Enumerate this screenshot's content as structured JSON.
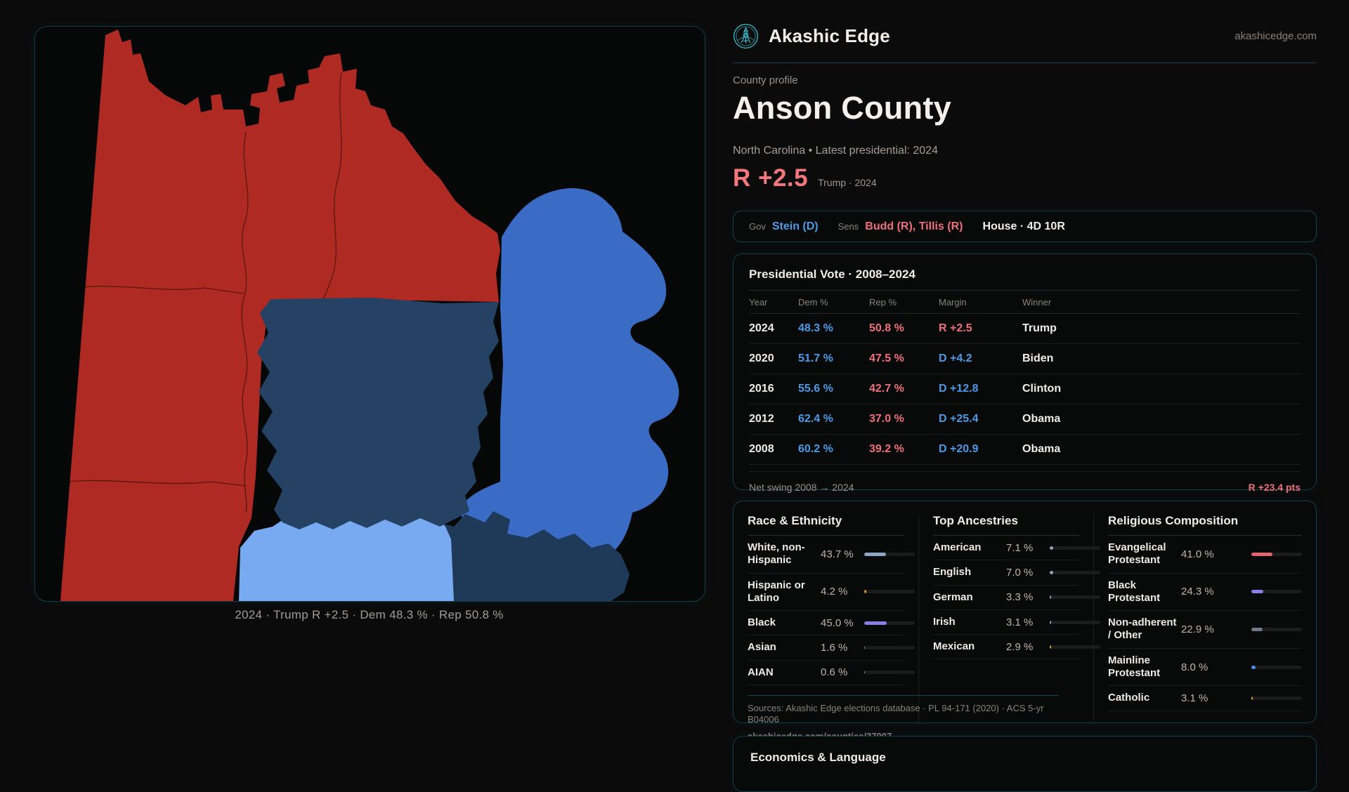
{
  "brand": {
    "name": "Akashic Edge",
    "domain": "akashicedge.com"
  },
  "header": {
    "eyebrow": "County profile",
    "title": "Anson County",
    "subtitle": "North Carolina • Latest presidential: 2024",
    "lead": "R +2.5",
    "lead_note": "Trump · 2024"
  },
  "officials": {
    "gov_label": "Gov",
    "gov": "Stein (D)",
    "sens_label": "Sens",
    "sens": "Budd (R), Tillis (R)",
    "house": "House · 4D 10R"
  },
  "vote_table": {
    "title": "Presidential Vote · 2008–2024",
    "columns": [
      "Year",
      "Dem %",
      "Rep %",
      "Margin",
      "Winner"
    ],
    "rows": [
      {
        "year": "2024",
        "dem": "48.3 %",
        "rep": "50.8 %",
        "margin": "R +2.5",
        "margin_party": "R",
        "winner": "Trump"
      },
      {
        "year": "2020",
        "dem": "51.7 %",
        "rep": "47.5 %",
        "margin": "D +4.2",
        "margin_party": "D",
        "winner": "Biden"
      },
      {
        "year": "2016",
        "dem": "55.6 %",
        "rep": "42.7 %",
        "margin": "D +12.8",
        "margin_party": "D",
        "winner": "Clinton"
      },
      {
        "year": "2012",
        "dem": "62.4 %",
        "rep": "37.0 %",
        "margin": "D +25.4",
        "margin_party": "D",
        "winner": "Obama"
      },
      {
        "year": "2008",
        "dem": "60.2 %",
        "rep": "39.2 %",
        "margin": "D +20.9",
        "margin_party": "D",
        "winner": "Obama"
      }
    ],
    "footer_label": "Net swing 2008 → 2024",
    "footer_value": "R +23.4 pts"
  },
  "demographics": {
    "groups": [
      {
        "title": "Race & Ethnicity",
        "rows": [
          {
            "label": "White, non-Hispanic",
            "value": "43.7 %",
            "pct": 43.7,
            "color": "#8fa6c4"
          },
          {
            "label": "Hispanic or Latino",
            "value": "4.2 %",
            "pct": 4.2,
            "color": "#e0951f"
          },
          {
            "label": "Black",
            "value": "45.0 %",
            "pct": 45.0,
            "color": "#8d7de6"
          },
          {
            "label": "Asian",
            "value": "1.6 %",
            "pct": 1.6,
            "color": "#35c7a4"
          },
          {
            "label": "AIAN",
            "value": "0.6 %",
            "pct": 0.6,
            "color": "#8a9aa8"
          }
        ]
      },
      {
        "title": "Top Ancestries",
        "rows": [
          {
            "label": "American",
            "value": "7.1 %",
            "pct": 7.1,
            "color": "#8fa6c4"
          },
          {
            "label": "English",
            "value": "7.0 %",
            "pct": 7.0,
            "color": "#8fa6c4"
          },
          {
            "label": "German",
            "value": "3.3 %",
            "pct": 3.3,
            "color": "#8fa6c4"
          },
          {
            "label": "Irish",
            "value": "3.1 %",
            "pct": 3.1,
            "color": "#8fa6c4"
          },
          {
            "label": "Mexican",
            "value": "2.9 %",
            "pct": 2.9,
            "color": "#e0a31f"
          }
        ]
      },
      {
        "title": "Religious Composition",
        "rows": [
          {
            "label": "Evangelical Protestant",
            "value": "41.0 %",
            "pct": 41.0,
            "color": "#e4646e"
          },
          {
            "label": "Black Protestant",
            "value": "24.3 %",
            "pct": 24.3,
            "color": "#8d7de6"
          },
          {
            "label": "Non-adherent / Other",
            "value": "22.9 %",
            "pct": 22.9,
            "color": "#6e7a8a"
          },
          {
            "label": "Mainline Protestant",
            "value": "8.0 %",
            "pct": 8.0,
            "color": "#4a90e8"
          },
          {
            "label": "Catholic",
            "value": "3.1 %",
            "pct": 3.1,
            "color": "#d9a41f"
          }
        ]
      }
    ]
  },
  "sources": {
    "line1": "Sources: Akashic Edge elections database · PL 94-171 (2020) · ACS 5-yr B04006",
    "line2": "akashicedge.com/counties/37007"
  },
  "economics": {
    "title": "Economics & Language"
  },
  "map": {
    "caption": "2024 · Trump R +2.5 · Dem 48.3 % · Rep 50.8 %",
    "regions": [
      {
        "name": "west-red-counties",
        "color": "#ae2a23"
      },
      {
        "name": "east-county",
        "color": "#3a6cc6"
      },
      {
        "name": "southeast-county",
        "color": "#1e3a58"
      },
      {
        "name": "south-county",
        "color": "#77aaf0"
      },
      {
        "name": "anson-county",
        "color": "#254264"
      }
    ]
  },
  "accents": {
    "dem": "#4a9ae8",
    "rep": "#ef707a",
    "cyan": "#3fc3d9"
  }
}
